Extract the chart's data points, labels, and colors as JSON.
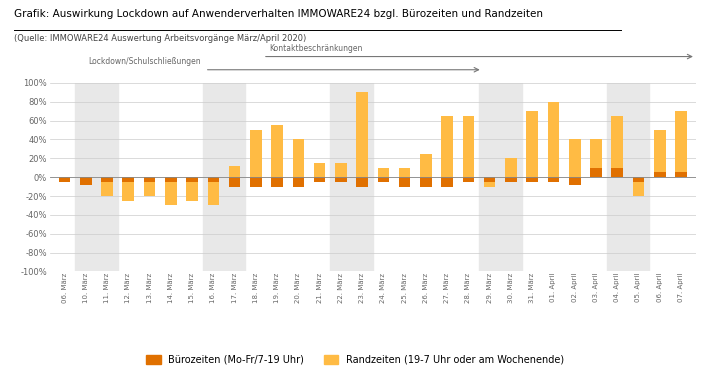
{
  "title": "Grafik: Auswirkung Lockdown auf Anwenderverhalten IMMOWARE24 bzgl. Bürozeiten und Randzeiten",
  "subtitle": "(Quelle: IMMOWARE24 Auswertung Arbeitsvorgänge März/April 2020)",
  "categories": [
    "06. März",
    "10. März",
    "11. März",
    "12. März",
    "13. März",
    "14. März",
    "15. März",
    "16. März",
    "17. März",
    "18. März",
    "19. März",
    "20. März",
    "21. März",
    "22. März",
    "23. März",
    "24. März",
    "25. März",
    "26. März",
    "27. März",
    "28. März",
    "29. März",
    "30. März",
    "31. März",
    "01. April",
    "02. April",
    "03. April",
    "04. April",
    "05. April",
    "06. April",
    "07. April"
  ],
  "buerozeiten": [
    -5,
    -8,
    -5,
    -5,
    -5,
    -5,
    -5,
    -5,
    -10,
    -10,
    -10,
    -10,
    -5,
    -5,
    -10,
    -5,
    -10,
    -10,
    -10,
    -5,
    -5,
    -5,
    -5,
    -5,
    -8,
    10,
    10,
    -5,
    5,
    5
  ],
  "randzeiten": [
    -3,
    -3,
    -20,
    -25,
    -20,
    -30,
    -25,
    -30,
    12,
    50,
    55,
    40,
    15,
    15,
    90,
    10,
    10,
    25,
    65,
    65,
    -10,
    20,
    70,
    80,
    40,
    40,
    65,
    -20,
    50,
    70
  ],
  "buero_color": "#E07000",
  "rand_color": "#FFBB44",
  "weekend_color": "#E8E8E8",
  "weekend_indices": [
    1,
    2,
    7,
    8,
    13,
    14,
    20,
    21,
    26,
    27
  ],
  "lockdown_label": "Lockdown/Schulschließungen",
  "kontakt_label": "Kontaktbeschränkungen",
  "legend_buero": "Bürozeiten (Mo-Fr/7-19 Uhr)",
  "legend_rand": "Randzeiten (19-7 Uhr oder am Wochenende)",
  "ylim": [
    -100,
    100
  ],
  "yticks": [
    -100,
    -80,
    -60,
    -40,
    -20,
    0,
    20,
    40,
    60,
    80,
    100
  ],
  "ytick_labels": [
    "-100%",
    "-80%",
    "-60%",
    "-40%",
    "-20%",
    "0%",
    "20%",
    "40%",
    "60%",
    "80%",
    "100%"
  ]
}
